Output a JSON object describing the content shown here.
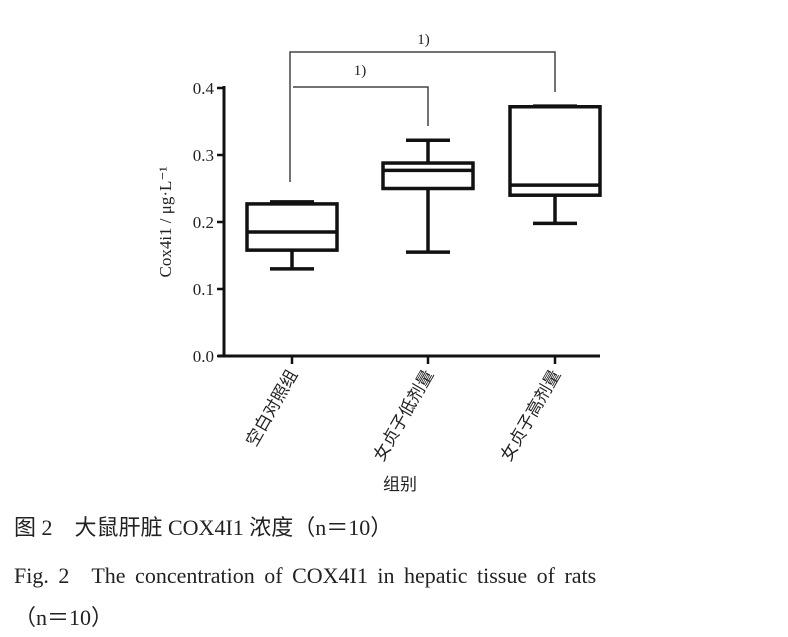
{
  "chart_data": {
    "type": "boxplot",
    "ylabel": "Cox4i1 / μg·L⁻¹",
    "xlabel": "组别",
    "ylim": [
      0,
      0.4
    ],
    "yticks": [
      0.0,
      0.1,
      0.2,
      0.3,
      0.4
    ],
    "ytick_labels": [
      "0.0",
      "0.1",
      "0.2",
      "0.3",
      "0.4"
    ],
    "categories": [
      "空白对照组",
      "女贞子低剂量",
      "女贞子高剂量"
    ],
    "boxes": [
      {
        "min": 0.13,
        "q1": 0.158,
        "median": 0.185,
        "q3": 0.227,
        "max": 0.23
      },
      {
        "min": 0.155,
        "q1": 0.25,
        "median": 0.277,
        "q3": 0.288,
        "max": 0.322
      },
      {
        "min": 0.198,
        "q1": 0.24,
        "median": 0.255,
        "q3": 0.372,
        "max": 0.373
      }
    ],
    "annotations": [
      {
        "from": 0,
        "to": 2,
        "label": "1)",
        "level": "outer"
      },
      {
        "from": 0,
        "to": 1,
        "label": "1)",
        "level": "inner"
      }
    ]
  },
  "caption": {
    "cn": "图 2　大鼠肝脏 COX4I1 浓度（n＝10）",
    "en_line1": "Fig. 2　The concentration of COX4I1 in hepatic tissue of rats",
    "en_line2": "（n＝10）"
  }
}
